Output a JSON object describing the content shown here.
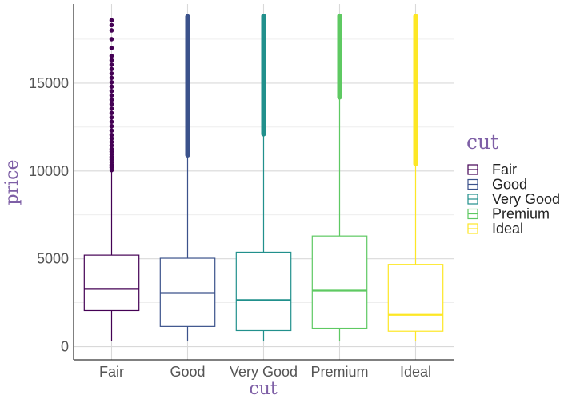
{
  "chart_data": {
    "type": "boxplot",
    "xlabel": "cut",
    "ylabel": "price",
    "ylim": [
      -750,
      19500
    ],
    "y_ticks": [
      0,
      5000,
      10000,
      15000
    ],
    "y_tick_labels": [
      "0",
      "5000",
      "10000",
      "15000"
    ],
    "y_minor_ticks": [
      2500,
      7500,
      12500,
      17500
    ],
    "grid": true,
    "legend": {
      "title": "cut",
      "position": "right",
      "labels": [
        "Fair",
        "Good",
        "Very Good",
        "Premium",
        "Ideal"
      ]
    },
    "categories": [
      "Fair",
      "Good",
      "Very Good",
      "Premium",
      "Ideal"
    ],
    "colors": [
      "#440154",
      "#3b528b",
      "#21908c",
      "#5ec962",
      "#fde725"
    ],
    "series": [
      {
        "q1": 2050,
        "median": 3282,
        "q3": 5206,
        "whisker_low": 337,
        "whisker_high": 9950,
        "outliers": [
          10050,
          10200,
          10350,
          10500,
          10650,
          10800,
          10950,
          11100,
          11250,
          11450,
          11650,
          11850,
          12050,
          12300,
          12550,
          12800,
          13050,
          13300,
          13550,
          13800,
          14050,
          14300,
          14550,
          14800,
          15050,
          15300,
          15550,
          15800,
          16050,
          16300,
          16550,
          17000,
          17500,
          18000,
          18300,
          18574
        ]
      },
      {
        "q1": 1145,
        "median": 3050,
        "q3": 5028,
        "whisker_low": 327,
        "whisker_high": 10850,
        "outliers_range": [
          10900,
          18788
        ]
      },
      {
        "q1": 912,
        "median": 2648,
        "q3": 5373,
        "whisker_low": 336,
        "whisker_high": 12050,
        "outliers_range": [
          12100,
          18818
        ]
      },
      {
        "q1": 1046,
        "median": 3185,
        "q3": 6296,
        "whisker_low": 326,
        "whisker_high": 14150,
        "outliers_range": [
          14200,
          18823
        ]
      },
      {
        "q1": 878,
        "median": 1810,
        "q3": 4678,
        "whisker_low": 326,
        "whisker_high": 10350,
        "outliers_range": [
          10400,
          18806
        ]
      }
    ]
  }
}
